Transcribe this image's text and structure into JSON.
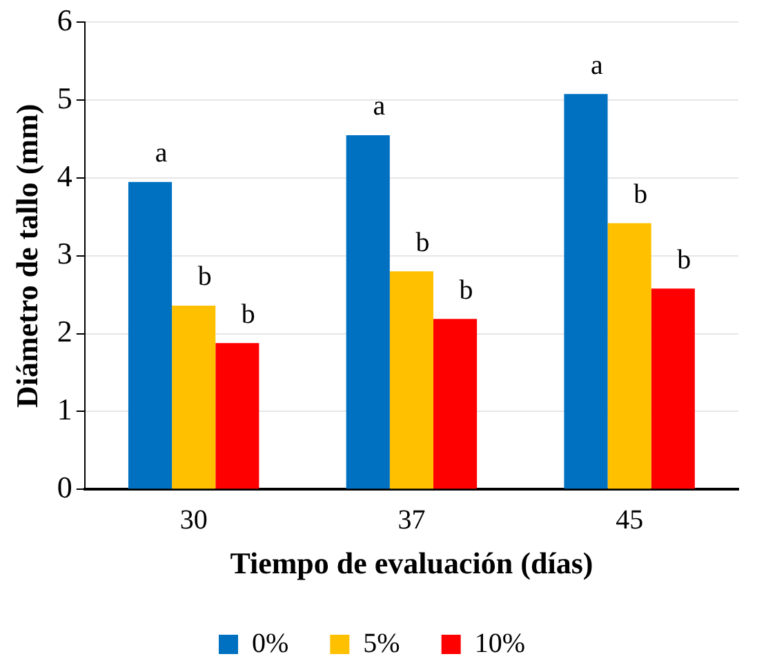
{
  "chart_data": {
    "type": "bar",
    "xlabel": "Tiempo de evaluación (días)",
    "ylabel": "Diámetro de tallo (mm)",
    "categories": [
      "30",
      "37",
      "45"
    ],
    "series": [
      {
        "name": "0%",
        "color": "#0070c0",
        "values": [
          3.95,
          4.55,
          5.08
        ],
        "value_labels": [
          "a",
          "a",
          "a"
        ]
      },
      {
        "name": "5%",
        "color": "#ffc000",
        "values": [
          2.36,
          2.8,
          3.42
        ],
        "value_labels": [
          "b",
          "b",
          "b"
        ]
      },
      {
        "name": "10%",
        "color": "#ff0000",
        "values": [
          1.88,
          2.19,
          2.58
        ],
        "value_labels": [
          "b",
          "b",
          "b"
        ]
      }
    ],
    "ylim": [
      0,
      6
    ],
    "yticks": [
      0,
      1,
      2,
      3,
      4,
      5,
      6
    ],
    "grid": "y",
    "legend": "bottom"
  }
}
